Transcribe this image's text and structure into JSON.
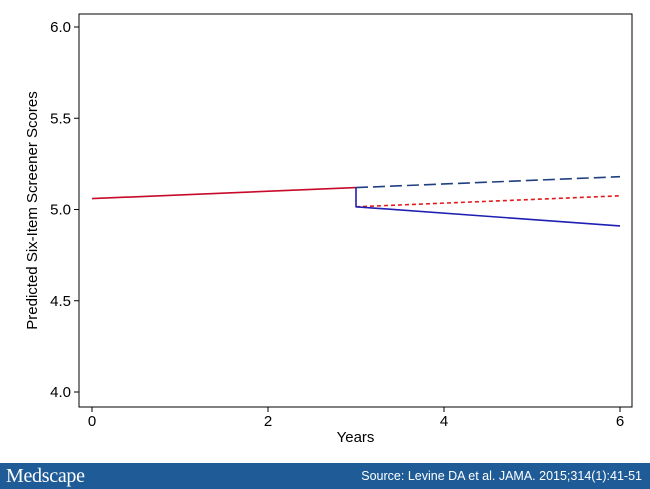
{
  "chart_data": {
    "type": "line",
    "xlabel": "Years",
    "ylabel": "Predicted Six-Item Screener Scores",
    "xlim": [
      0,
      6
    ],
    "ylim": [
      4.0,
      6.0
    ],
    "xticks": [
      "0",
      "2",
      "4",
      "6"
    ],
    "yticks": [
      "4.0",
      "4.5",
      "5.0",
      "5.5",
      "6.0"
    ],
    "grid": false,
    "series": [
      {
        "color": "#c80a2a",
        "style": "solid",
        "points": [
          [
            0,
            5.06
          ],
          [
            3,
            5.12
          ]
        ]
      },
      {
        "color": "#1f3f80",
        "style": "dashed",
        "points": [
          [
            3,
            5.12
          ],
          [
            6,
            5.18
          ]
        ]
      },
      {
        "color": "#e41a1c",
        "style": "dotted",
        "points": [
          [
            3,
            5.015
          ],
          [
            6,
            5.075
          ]
        ]
      },
      {
        "color": "#1f1fb4",
        "style": "solid",
        "points": [
          [
            3,
            5.12
          ],
          [
            3,
            5.015
          ],
          [
            6,
            4.91
          ]
        ]
      }
    ]
  },
  "footer": {
    "brand": "Medscape",
    "source": "Source: Levine DA et al. JAMA. 2015;314(1):41-51",
    "background": "#1f5c97"
  }
}
